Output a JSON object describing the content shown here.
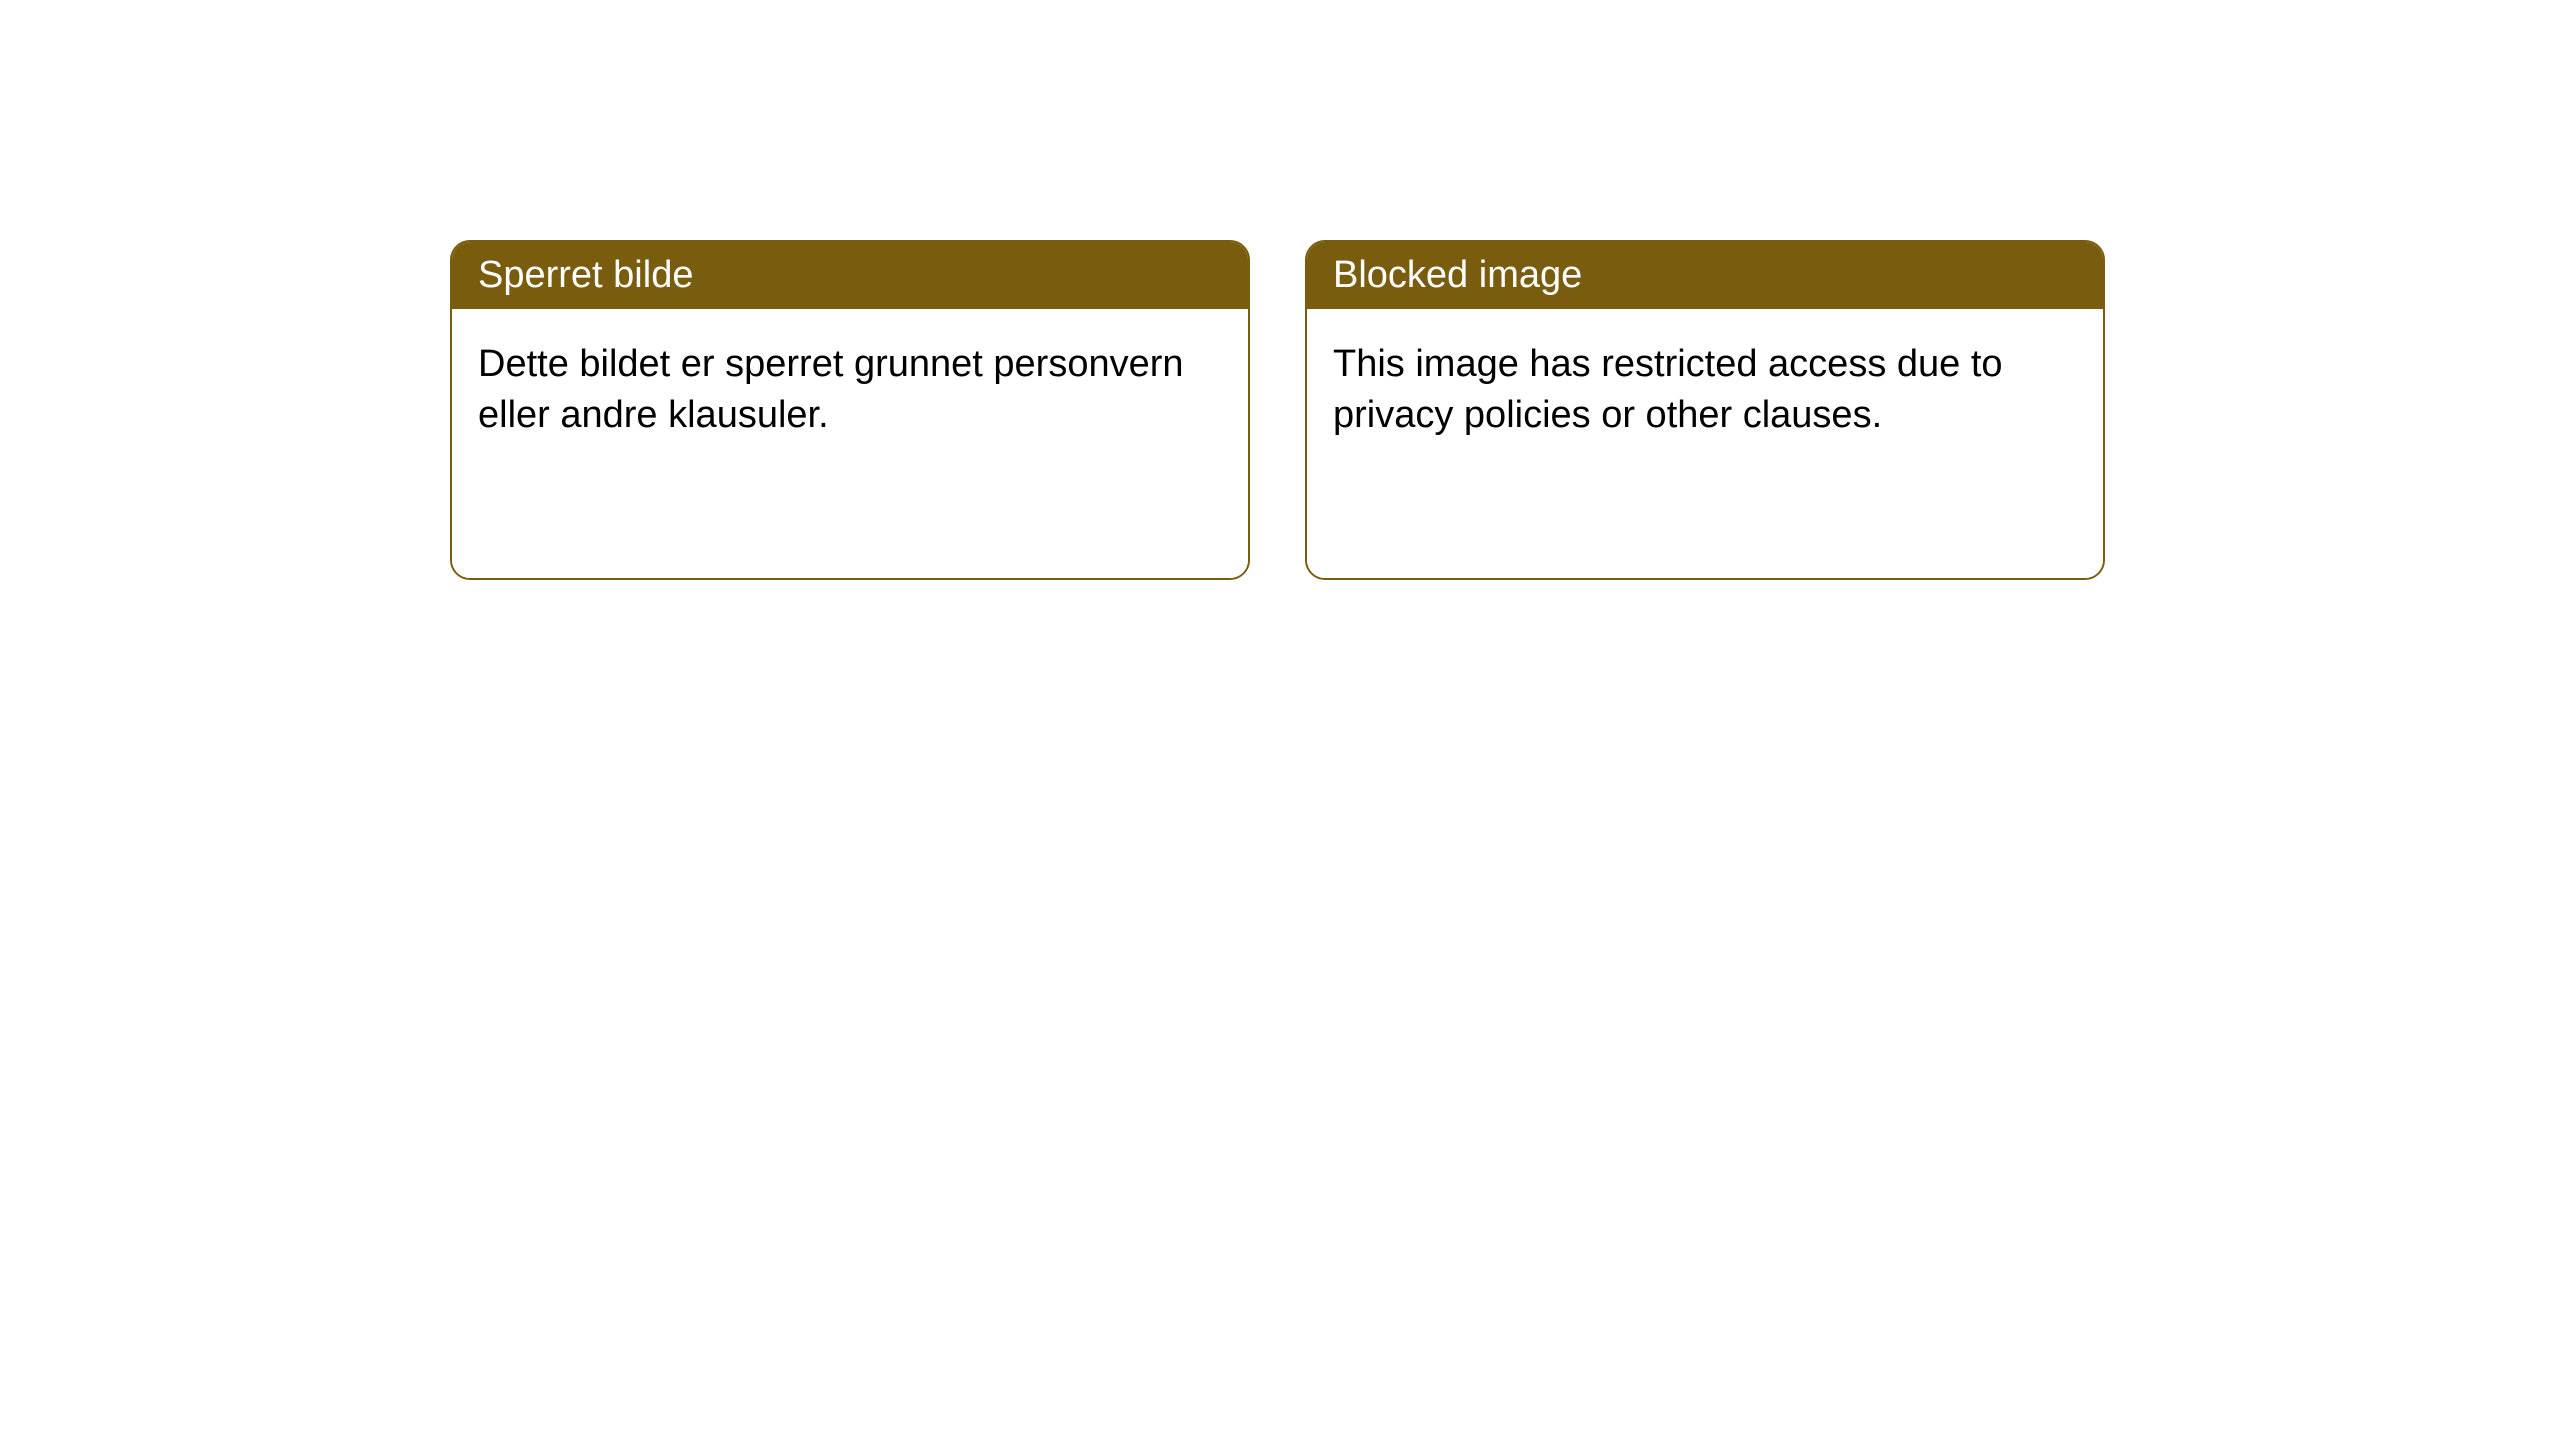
{
  "layout": {
    "background_color": "#ffffff",
    "card_border_color": "#7a5c0f",
    "card_border_radius": 20,
    "header_background_color": "#7a5c0f",
    "header_text_color": "#ffffff",
    "body_text_color": "#000000",
    "title_fontsize": 38,
    "body_fontsize": 38
  },
  "cards": [
    {
      "title": "Sperret bilde",
      "body": "Dette bildet er sperret grunnet personvern eller andre klausuler."
    },
    {
      "title": "Blocked image",
      "body": "This image has restricted access due to privacy policies or other clauses."
    }
  ]
}
